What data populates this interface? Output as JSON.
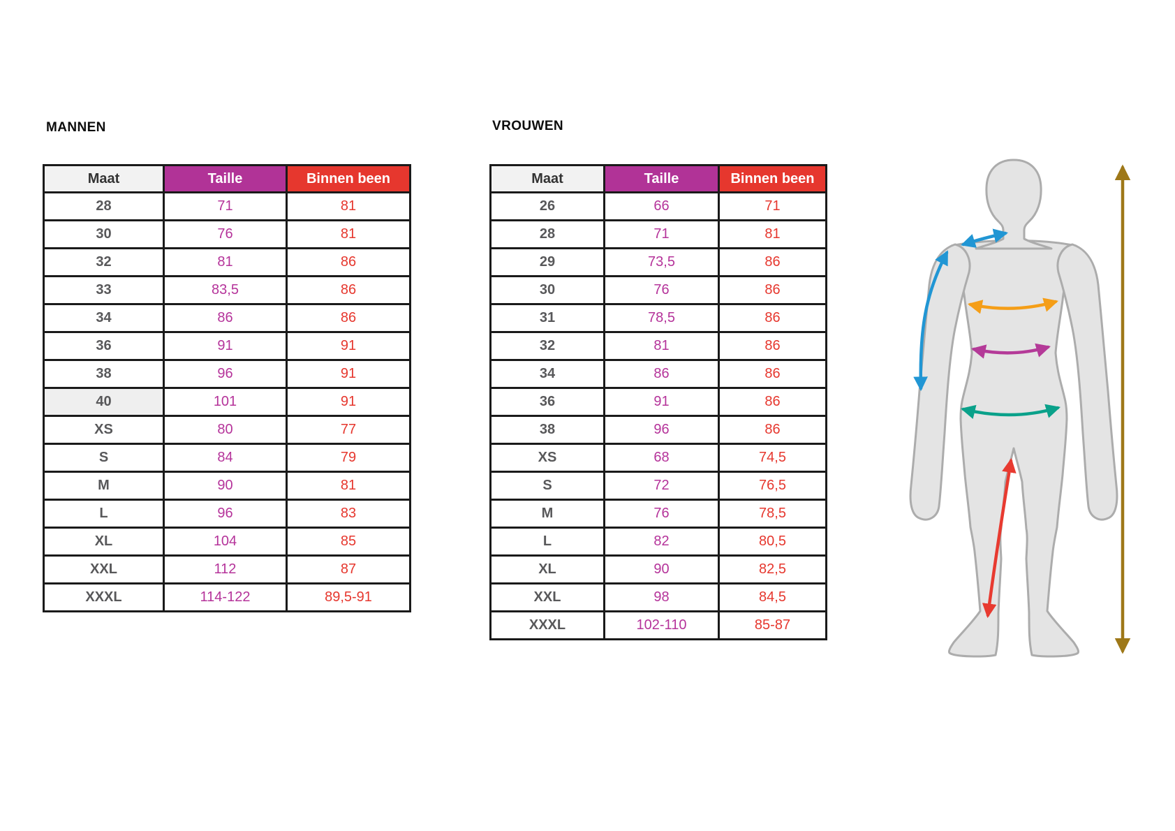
{
  "tables": {
    "men": {
      "title": "MANNEN",
      "headers": [
        "Maat",
        "Taille",
        "Binnen been"
      ],
      "highlighted_size": "40",
      "rows": [
        [
          "28",
          "71",
          "81"
        ],
        [
          "30",
          "76",
          "81"
        ],
        [
          "32",
          "81",
          "86"
        ],
        [
          "33",
          "83,5",
          "86"
        ],
        [
          "34",
          "86",
          "86"
        ],
        [
          "36",
          "91",
          "91"
        ],
        [
          "38",
          "96",
          "91"
        ],
        [
          "40",
          "101",
          "91"
        ],
        [
          "XS",
          "80",
          "77"
        ],
        [
          "S",
          "84",
          "79"
        ],
        [
          "M",
          "90",
          "81"
        ],
        [
          "L",
          "96",
          "83"
        ],
        [
          "XL",
          "104",
          "85"
        ],
        [
          "XXL",
          "112",
          "87"
        ],
        [
          "XXXL",
          "114-122",
          "89,5-91"
        ]
      ]
    },
    "women": {
      "title": "VROUWEN",
      "headers": [
        "Maat",
        "Taille",
        "Binnen been"
      ],
      "rows": [
        [
          "26",
          "66",
          "71"
        ],
        [
          "28",
          "71",
          "81"
        ],
        [
          "29",
          "73,5",
          "86"
        ],
        [
          "30",
          "76",
          "86"
        ],
        [
          "31",
          "78,5",
          "86"
        ],
        [
          "32",
          "81",
          "86"
        ],
        [
          "34",
          "86",
          "86"
        ],
        [
          "36",
          "91",
          "86"
        ],
        [
          "38",
          "96",
          "86"
        ],
        [
          "XS",
          "68",
          "74,5"
        ],
        [
          "S",
          "72",
          "76,5"
        ],
        [
          "M",
          "76",
          "78,5"
        ],
        [
          "L",
          "82",
          "80,5"
        ],
        [
          "XL",
          "90",
          "82,5"
        ],
        [
          "XXL",
          "98",
          "84,5"
        ],
        [
          "XXXL",
          "102-110",
          "85-87"
        ]
      ]
    }
  },
  "colors": {
    "border": "#1a1a1a",
    "header_size_bg": "#F2F2F2",
    "header_waist_bg": "#B13397",
    "header_inseam_bg": "#E6372E",
    "size_text": "#58585A",
    "waist_text": "#B5339A",
    "inseam_text": "#E6372E",
    "highlight_bg": "#EFEFEF",
    "figure_fill": "#E4E4E4",
    "figure_outline": "#ACACAC",
    "arrow_shoulder": "#2196D4",
    "arrow_sleeve": "#2196D4",
    "arrow_chest": "#F59E17",
    "arrow_waist": "#B43A98",
    "arrow_hip": "#0AA18A",
    "arrow_inseam": "#E83A30",
    "arrow_height": "#9E7818"
  },
  "figure": {
    "arrows": [
      {
        "name": "shoulder-arrow",
        "color": "#2196D4"
      },
      {
        "name": "sleeve-arrow",
        "color": "#2196D4"
      },
      {
        "name": "chest-arrow",
        "color": "#F59E17"
      },
      {
        "name": "waist-arrow",
        "color": "#B43A98"
      },
      {
        "name": "hip-arrow",
        "color": "#0AA18A"
      },
      {
        "name": "inseam-arrow",
        "color": "#E83A30"
      },
      {
        "name": "height-arrow",
        "color": "#9E7818"
      }
    ]
  }
}
